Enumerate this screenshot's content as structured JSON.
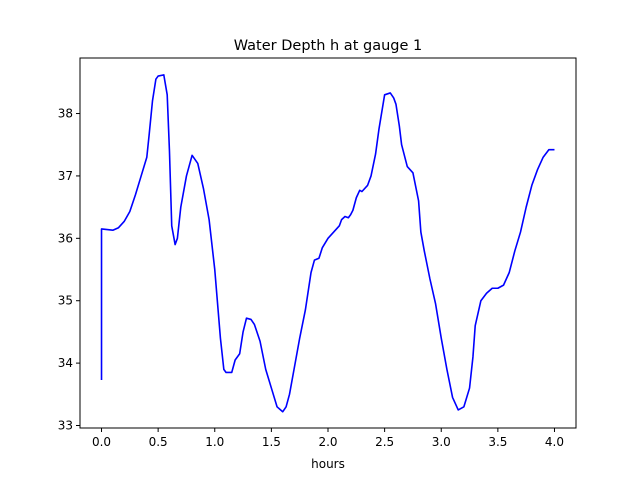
{
  "chart_data": {
    "type": "line",
    "title": "Water Depth h at gauge 1",
    "xlabel": "hours",
    "ylabel": "",
    "xlim": [
      -0.19,
      4.19
    ],
    "ylim": [
      32.96,
      38.89
    ],
    "xticks": [
      0.0,
      0.5,
      1.0,
      1.5,
      2.0,
      2.5,
      3.0,
      3.5,
      4.0
    ],
    "xtick_labels": [
      "0.0",
      "0.5",
      "1.0",
      "1.5",
      "2.0",
      "2.5",
      "3.0",
      "3.5",
      "4.0"
    ],
    "yticks": [
      33,
      34,
      35,
      36,
      37,
      38
    ],
    "ytick_labels": [
      "33",
      "34",
      "35",
      "36",
      "37",
      "38"
    ],
    "grid": false,
    "series": [
      {
        "color": "#0000ff",
        "x": [
          0.0,
          0.0,
          0.05,
          0.1,
          0.15,
          0.2,
          0.25,
          0.3,
          0.35,
          0.4,
          0.42,
          0.45,
          0.48,
          0.5,
          0.55,
          0.58,
          0.6,
          0.62,
          0.65,
          0.67,
          0.7,
          0.75,
          0.8,
          0.85,
          0.9,
          0.95,
          1.0,
          1.05,
          1.08,
          1.1,
          1.15,
          1.18,
          1.22,
          1.25,
          1.28,
          1.32,
          1.35,
          1.4,
          1.45,
          1.5,
          1.55,
          1.6,
          1.63,
          1.66,
          1.7,
          1.75,
          1.8,
          1.85,
          1.88,
          1.92,
          1.95,
          2.0,
          2.05,
          2.1,
          2.12,
          2.15,
          2.18,
          2.2,
          2.22,
          2.25,
          2.28,
          2.3,
          2.35,
          2.38,
          2.42,
          2.45,
          2.5,
          2.55,
          2.58,
          2.6,
          2.63,
          2.65,
          2.7,
          2.75,
          2.8,
          2.82,
          2.85,
          2.9,
          2.95,
          3.0,
          3.05,
          3.1,
          3.15,
          3.2,
          3.25,
          3.28,
          3.3,
          3.35,
          3.4,
          3.45,
          3.5,
          3.55,
          3.6,
          3.65,
          3.7,
          3.75,
          3.8,
          3.85,
          3.9,
          3.95,
          4.0
        ],
        "y": [
          33.73,
          36.15,
          36.14,
          36.13,
          36.17,
          36.27,
          36.43,
          36.7,
          37.0,
          37.3,
          37.65,
          38.2,
          38.55,
          38.6,
          38.62,
          38.3,
          37.4,
          36.2,
          35.9,
          36.0,
          36.5,
          37.0,
          37.33,
          37.2,
          36.8,
          36.3,
          35.5,
          34.4,
          33.9,
          33.85,
          33.85,
          34.05,
          34.15,
          34.5,
          34.72,
          34.7,
          34.62,
          34.35,
          33.9,
          33.6,
          33.3,
          33.22,
          33.3,
          33.5,
          33.9,
          34.4,
          34.85,
          35.45,
          35.65,
          35.68,
          35.85,
          36.0,
          36.1,
          36.2,
          36.3,
          36.35,
          36.33,
          36.38,
          36.45,
          36.65,
          36.77,
          36.75,
          36.85,
          37.0,
          37.35,
          37.75,
          38.3,
          38.33,
          38.25,
          38.15,
          37.8,
          37.5,
          37.15,
          37.05,
          36.6,
          36.1,
          35.8,
          35.35,
          34.95,
          34.4,
          33.9,
          33.45,
          33.25,
          33.3,
          33.6,
          34.1,
          34.6,
          35.0,
          35.12,
          35.2,
          35.2,
          35.25,
          35.45,
          35.8,
          36.1,
          36.5,
          36.85,
          37.1,
          37.3,
          37.42,
          37.42
        ]
      }
    ]
  }
}
